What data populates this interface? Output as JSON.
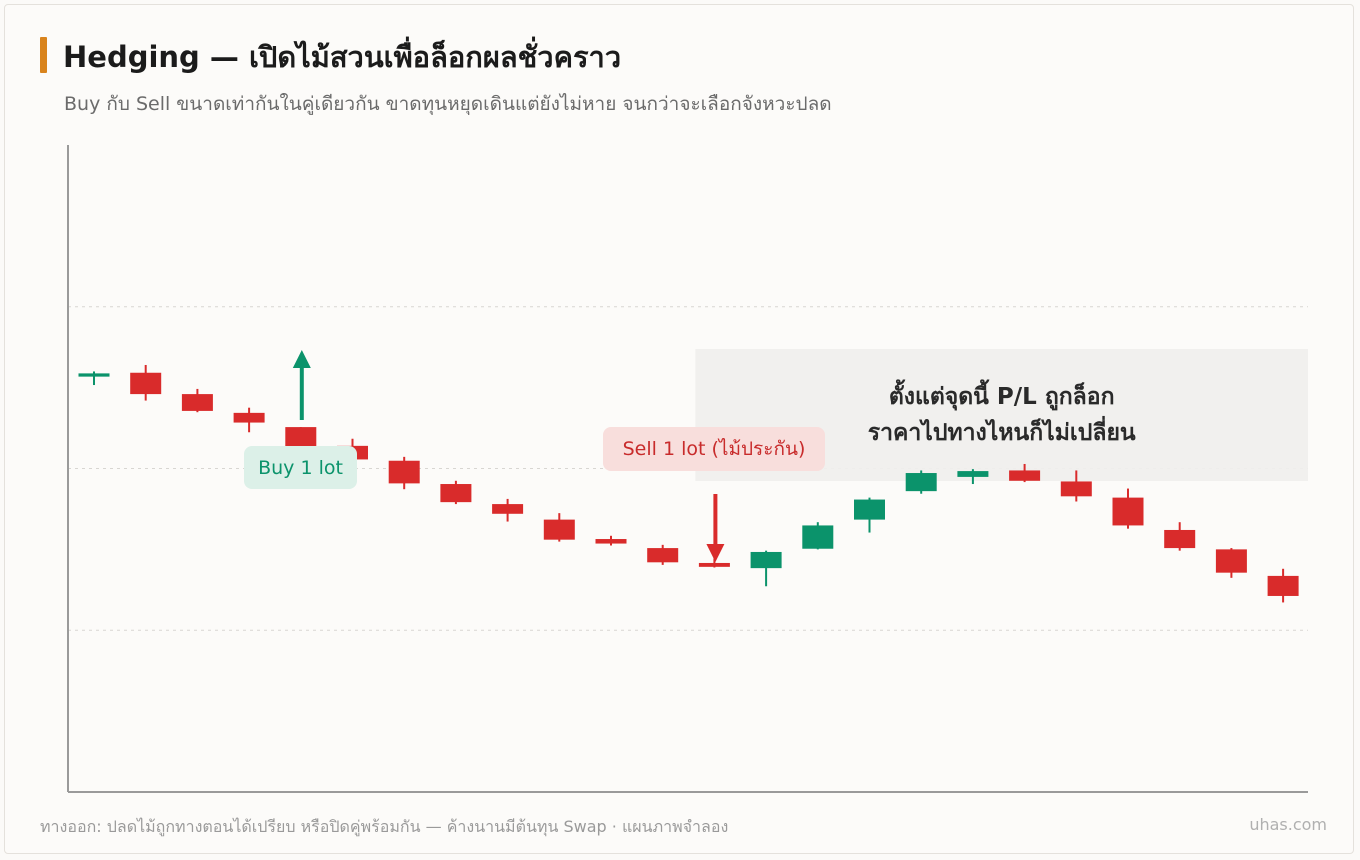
{
  "header": {
    "title": "Hedging — เปิดไม้สวนเพื่อล็อกผลชั่วคราว",
    "subtitle": "Buy กับ Sell ขนาดเท่ากันในคู่เดียวกัน ขาดทุนหยุดเดินแต่ยังไม่หาย จนกว่าจะเลือกจังหวะปลด"
  },
  "colors": {
    "up": "#0b936b",
    "down": "#d92b2b",
    "accent": "#d9841d",
    "buy_label_bg": "#dcf0e8",
    "sell_label_bg": "#f8dedc",
    "lock_zone_bg": "#f0efed",
    "grid": "#d8d6d2",
    "axis": "#9a9a9a"
  },
  "chart_data": {
    "type": "candlestick",
    "y_range": [
      0,
      100
    ],
    "gridlines": [
      25,
      50,
      75
    ],
    "candles": [
      {
        "open": 64.2,
        "high": 65.0,
        "low": 62.9,
        "close": 64.7
      },
      {
        "open": 64.8,
        "high": 66.0,
        "low": 60.5,
        "close": 61.5
      },
      {
        "open": 61.5,
        "high": 62.3,
        "low": 58.7,
        "close": 58.9
      },
      {
        "open": 58.6,
        "high": 59.4,
        "low": 55.6,
        "close": 57.1
      },
      {
        "open": 56.4,
        "high": 56.4,
        "low": 52.6,
        "close": 53.3
      },
      {
        "open": 53.5,
        "high": 54.6,
        "low": 50.3,
        "close": 51.4
      },
      {
        "open": 51.2,
        "high": 51.8,
        "low": 46.8,
        "close": 47.7
      },
      {
        "open": 47.6,
        "high": 48.1,
        "low": 44.5,
        "close": 44.8
      },
      {
        "open": 44.5,
        "high": 45.3,
        "low": 41.8,
        "close": 43.0
      },
      {
        "open": 42.1,
        "high": 43.1,
        "low": 38.7,
        "close": 39.0
      },
      {
        "open": 39.1,
        "high": 39.6,
        "low": 38.1,
        "close": 38.4
      },
      {
        "open": 37.7,
        "high": 38.2,
        "low": 35.1,
        "close": 35.5
      },
      {
        "open": 35.4,
        "high": 36.1,
        "low": 34.7,
        "close": 34.8
      },
      {
        "open": 34.6,
        "high": 37.3,
        "low": 31.8,
        "close": 37.1
      },
      {
        "open": 37.6,
        "high": 41.7,
        "low": 37.5,
        "close": 41.2
      },
      {
        "open": 42.1,
        "high": 45.5,
        "low": 40.1,
        "close": 45.2
      },
      {
        "open": 46.5,
        "high": 49.7,
        "low": 46.1,
        "close": 49.3
      },
      {
        "open": 48.7,
        "high": 49.9,
        "low": 47.6,
        "close": 49.6
      },
      {
        "open": 49.7,
        "high": 50.7,
        "low": 47.9,
        "close": 48.1
      },
      {
        "open": 48.0,
        "high": 49.7,
        "low": 44.9,
        "close": 45.7
      },
      {
        "open": 45.5,
        "high": 46.9,
        "low": 40.7,
        "close": 41.2
      },
      {
        "open": 40.5,
        "high": 41.7,
        "low": 37.3,
        "close": 37.7
      },
      {
        "open": 37.5,
        "high": 37.7,
        "low": 33.1,
        "close": 33.9
      },
      {
        "open": 33.4,
        "high": 34.5,
        "low": 29.3,
        "close": 30.3
      }
    ],
    "annotations": {
      "buy": {
        "label": "Buy 1 lot",
        "candle_index": 4
      },
      "sell": {
        "label": "Sell 1 lot (ไม้ประกัน)",
        "candle_index": 12
      },
      "lock_zone": {
        "line1": "ตั้งแต่จุดนี้ P/L ถูกล็อก",
        "line2": "ราคาไปทางไหนก็ไม่เปลี่ยน",
        "start_candle_index": 12
      }
    }
  },
  "footer": {
    "note": "ทางออก: ปลดไม้ถูกทางตอนได้เปรียบ หรือปิดคู่พร้อมกัน — ค้างนานมีต้นทุน Swap · แผนภาพจำลอง",
    "brand": "uhas.com"
  }
}
